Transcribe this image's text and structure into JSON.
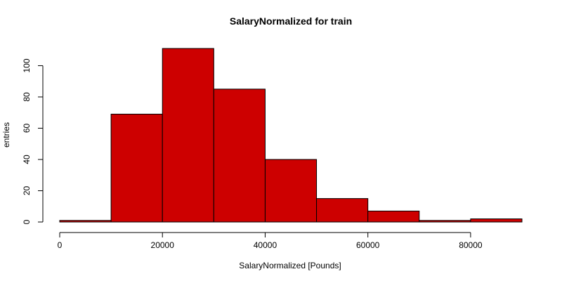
{
  "chart_data": {
    "type": "bar",
    "title": "SalaryNormalized for train",
    "xlabel": "SalaryNormalized [Pounds]",
    "ylabel": "entries",
    "bin_edges": [
      0,
      10000,
      20000,
      30000,
      40000,
      50000,
      60000,
      70000,
      80000,
      90000
    ],
    "values": [
      1,
      69,
      111,
      85,
      40,
      15,
      7,
      1,
      2
    ],
    "xlim": [
      0,
      90000
    ],
    "ylim": [
      0,
      111
    ],
    "xticks": [
      0,
      20000,
      40000,
      60000,
      80000
    ],
    "yticks": [
      0,
      20,
      40,
      60,
      80,
      100
    ],
    "bar_color": "#cd0000",
    "bar_edge_color": "#000000",
    "grid": false,
    "legend": "none"
  }
}
